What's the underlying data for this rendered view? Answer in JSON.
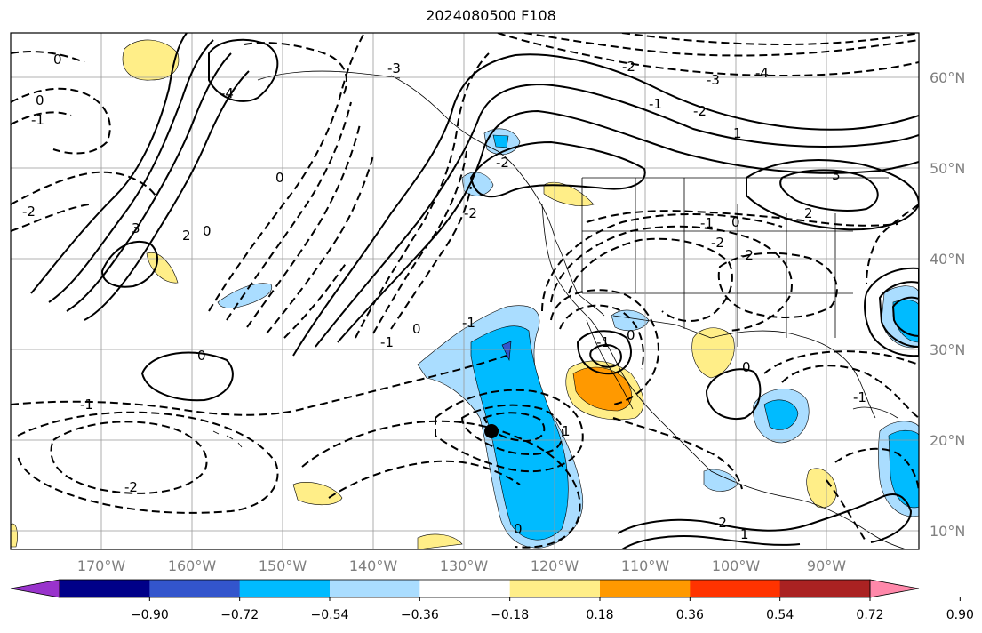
{
  "title": "2024080500 F108",
  "lat_labels": [
    "60°N",
    "50°N",
    "40°N",
    "30°N",
    "20°N",
    "10°N"
  ],
  "lon_labels": [
    "170°W",
    "160°W",
    "150°W",
    "140°W",
    "130°W",
    "120°W",
    "110°W",
    "100°W",
    "90°W"
  ],
  "colorbar": {
    "colors": [
      "#9933cc",
      "#000088",
      "#3355cc",
      "#00bbff",
      "#aaddff",
      "#ffffff",
      "#ffee88",
      "#ff9900",
      "#ff3300",
      "#aa2222",
      "#ff88aa"
    ],
    "labels": [
      "−0.90",
      "−0.72",
      "−0.54",
      "−0.36",
      "−0.18",
      "0.18",
      "0.36",
      "0.54",
      "0.72",
      "0.90"
    ]
  },
  "contour_labels": [
    "0",
    "0",
    "-1",
    "-4",
    "-2",
    "-3",
    "-2",
    "-1",
    "-2",
    "-3",
    "-4",
    "0",
    "-2",
    "3",
    "2",
    "0",
    "0",
    "-1",
    "0",
    "-1",
    "-2",
    "1",
    "3",
    "2",
    "-1",
    "0",
    "-2",
    "-2",
    "-1",
    "0",
    "0",
    "-1",
    "-2",
    "1",
    "0",
    "-2",
    "-1",
    "1"
  ],
  "icons": {
    "marker": "storm-center-dot"
  }
}
